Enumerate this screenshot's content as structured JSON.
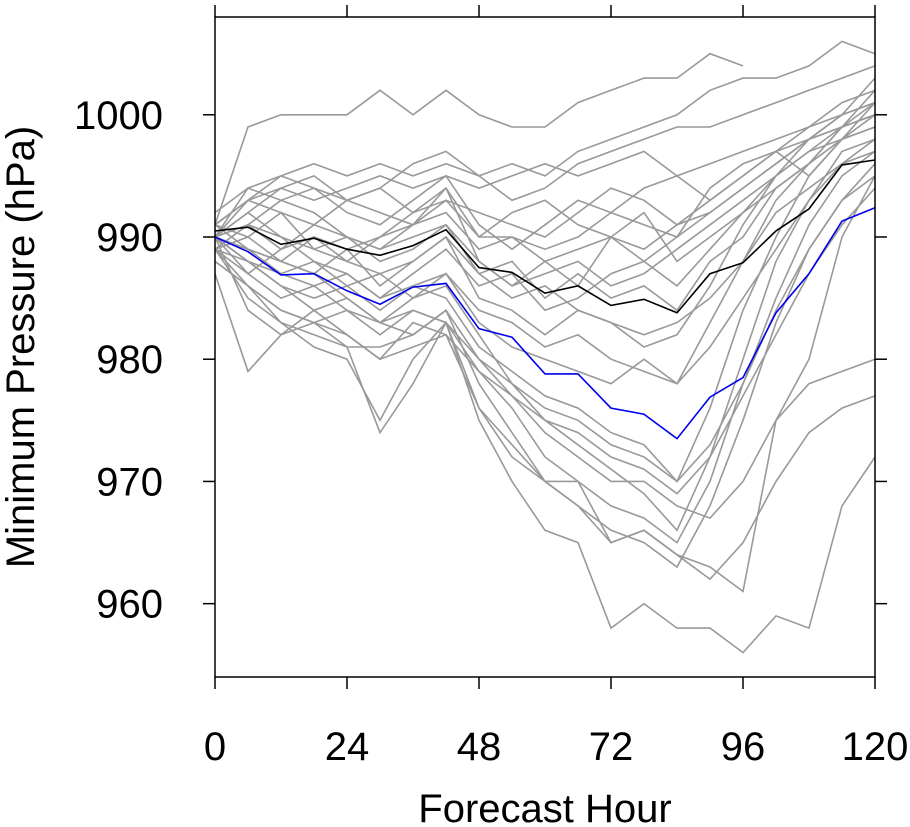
{
  "chart_data": {
    "type": "line",
    "title": "",
    "xlabel": "Forecast Hour",
    "ylabel": "Minimum Pressure (hPa)",
    "xlim": [
      0,
      120
    ],
    "ylim": [
      954,
      1008
    ],
    "x_ticks": [
      0,
      24,
      48,
      72,
      96,
      120
    ],
    "y_ticks": [
      960,
      970,
      980,
      990,
      1000
    ],
    "grid": false,
    "legend": "none",
    "colors": {
      "ensemble": "#999999",
      "mean": "#000000",
      "highlight": "#0000ee"
    },
    "x": [
      0,
      6,
      12,
      18,
      24,
      30,
      36,
      42,
      48,
      54,
      60,
      66,
      72,
      78,
      84,
      90,
      96,
      102,
      108,
      114,
      120
    ],
    "ensemble": [
      [
        991,
        999,
        1000,
        1000,
        1000,
        1002,
        1000,
        1002,
        1000,
        999,
        999,
        1001,
        1002,
        1003,
        1003,
        1005,
        1004
      ],
      [
        990,
        994,
        995,
        996,
        995,
        996,
        995,
        996,
        995,
        996,
        995,
        997,
        998,
        999,
        1000,
        1002,
        1003,
        1003,
        1004,
        1006,
        1005
      ],
      [
        991,
        993,
        994,
        995,
        993,
        994,
        996,
        997,
        995,
        993,
        994,
        996,
        997,
        998,
        999,
        999,
        1000,
        1001,
        1002,
        1003,
        1004
      ],
      [
        990,
        992,
        994,
        993,
        994,
        995,
        994,
        995,
        994,
        995,
        996,
        995,
        996,
        997,
        995,
        996,
        997,
        998,
        999,
        1000,
        1001
      ],
      [
        989,
        991,
        993,
        994,
        992,
        991,
        993,
        995,
        991,
        989,
        991,
        993,
        992,
        994,
        995,
        993,
        995,
        997,
        998,
        999,
        1000
      ],
      [
        990,
        993,
        992,
        991,
        993,
        992,
        991,
        993,
        990,
        990,
        989,
        990,
        992,
        991,
        990,
        994,
        996,
        997,
        995,
        998,
        999
      ],
      [
        989,
        990,
        992,
        989,
        988,
        990,
        992,
        994,
        988,
        986,
        988,
        986,
        990,
        992,
        988,
        990,
        992,
        995,
        997,
        998,
        1001
      ],
      [
        990,
        991,
        990,
        989,
        990,
        989,
        990,
        991,
        987,
        988,
        985,
        987,
        985,
        986,
        984,
        988,
        990,
        994,
        996,
        999,
        1002
      ],
      [
        991,
        990,
        988,
        987,
        989,
        986,
        988,
        990,
        985,
        984,
        982,
        984,
        983,
        981,
        982,
        986,
        991,
        995,
        998,
        1000,
        1003
      ],
      [
        990,
        989,
        987,
        988,
        986,
        987,
        985,
        987,
        983,
        981,
        980,
        979,
        978,
        980,
        978,
        983,
        988,
        993,
        996,
        999,
        1000
      ],
      [
        989,
        988,
        986,
        985,
        986,
        984,
        986,
        985,
        981,
        979,
        977,
        976,
        974,
        973,
        970,
        976,
        984,
        990,
        995,
        998,
        999
      ],
      [
        990,
        987,
        985,
        986,
        984,
        983,
        985,
        986,
        982,
        978,
        975,
        973,
        971,
        969,
        966,
        972,
        980,
        988,
        993,
        997,
        998
      ],
      [
        988,
        986,
        984,
        983,
        984,
        982,
        984,
        983,
        979,
        976,
        972,
        970,
        968,
        967,
        965,
        970,
        978,
        985,
        991,
        995,
        997
      ],
      [
        989,
        985,
        983,
        982,
        981,
        981,
        982,
        984,
        978,
        974,
        970,
        968,
        966,
        965,
        963,
        968,
        975,
        983,
        989,
        993,
        996
      ],
      [
        990,
        984,
        982,
        984,
        982,
        980,
        983,
        982,
        976,
        972,
        970,
        970,
        965,
        966,
        964,
        963,
        961,
        975,
        980,
        990,
        995
      ],
      [
        988,
        986,
        983,
        981,
        980,
        975,
        980,
        983,
        975,
        970,
        966,
        965,
        958,
        960,
        958,
        958,
        956,
        959,
        958,
        968,
        972
      ],
      [
        987,
        979,
        982,
        983,
        981,
        974,
        978,
        983,
        976,
        973,
        970,
        968,
        965,
        966,
        964,
        962,
        965,
        970,
        974,
        976,
        977
      ],
      [
        990,
        988,
        986,
        984,
        985,
        983,
        982,
        984,
        980,
        977,
        974,
        972,
        970,
        970,
        968,
        967,
        970,
        975,
        978,
        979,
        980
      ],
      [
        991,
        989,
        988,
        990,
        988,
        987,
        988,
        990,
        987,
        985,
        986,
        984,
        983,
        982,
        983,
        985,
        988,
        992,
        994,
        996,
        997
      ],
      [
        992,
        994,
        993,
        992,
        990,
        989,
        991,
        994,
        990,
        992,
        993,
        991,
        990,
        989,
        991,
        993,
        995,
        997,
        999,
        1001,
        1002
      ],
      [
        990,
        992,
        990,
        988,
        987,
        985,
        987,
        989,
        986,
        987,
        984,
        985,
        987,
        988,
        986,
        989,
        992,
        994,
        996,
        998,
        1000
      ],
      [
        989,
        987,
        989,
        991,
        990,
        988,
        989,
        991,
        988,
        986,
        987,
        988,
        986,
        987,
        989,
        991,
        993,
        995,
        997,
        999,
        1001
      ],
      [
        991,
        993,
        995,
        994,
        993,
        994,
        992,
        993,
        992,
        991,
        990,
        992,
        994,
        993,
        991,
        992,
        994,
        996,
        998,
        999,
        1000
      ],
      [
        990,
        989,
        988,
        987,
        985,
        983,
        984,
        983,
        980,
        978,
        976,
        975,
        973,
        972,
        970,
        973,
        978,
        984,
        989,
        993,
        995
      ],
      [
        989,
        986,
        984,
        983,
        982,
        980,
        981,
        982,
        979,
        977,
        975,
        974,
        972,
        971,
        969,
        972,
        977,
        982,
        987,
        991,
        994
      ],
      [
        990,
        991,
        989,
        990,
        989,
        990,
        991,
        992,
        989,
        990,
        988,
        989,
        990,
        988,
        990,
        992,
        994,
        996,
        998,
        1000,
        1001
      ],
      [
        990,
        988,
        987,
        986,
        987,
        985,
        986,
        987,
        984,
        983,
        981,
        982,
        980,
        979,
        978,
        981,
        985,
        989,
        993,
        996,
        998
      ]
    ],
    "series": [
      {
        "name": "",
        "color": "#000000",
        "values": [
          990.5,
          990.8,
          989.4,
          989.9,
          989.0,
          988.5,
          989.3,
          990.6,
          987.5,
          987.1,
          985.4,
          986.0,
          984.4,
          984.9,
          983.8,
          987.0,
          987.9,
          990.5,
          992.3,
          995.9,
          996.3
        ]
      },
      {
        "name": "",
        "color": "#0000ee",
        "values": [
          990.0,
          988.8,
          986.9,
          987.0,
          985.6,
          984.5,
          985.9,
          986.2,
          982.5,
          981.8,
          978.8,
          978.8,
          976.0,
          975.5,
          973.5,
          976.9,
          978.5,
          983.8,
          987.0,
          991.3,
          992.4
        ]
      }
    ]
  }
}
